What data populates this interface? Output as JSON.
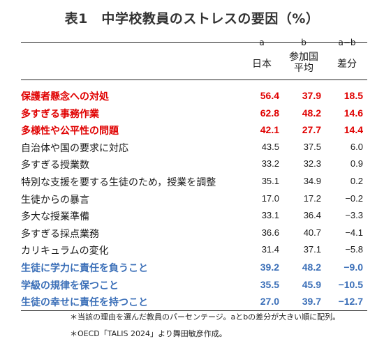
{
  "title": "表1　中学校教員のストレスの要因（%）",
  "columns": [
    {
      "letter": "a",
      "name": "日本"
    },
    {
      "letter": "b",
      "name_line1": "参加国",
      "name_line2": "平均"
    },
    {
      "letter": "a−b",
      "name": "差分"
    }
  ],
  "rows": [
    {
      "label": "保護者懸念への対処",
      "a": "56.4",
      "b": "37.9",
      "diff": "18.5",
      "style": "red"
    },
    {
      "label": "多すぎる事務作業",
      "a": "62.8",
      "b": "48.2",
      "diff": "14.6",
      "style": "red"
    },
    {
      "label": "多様性や公平性の問題",
      "a": "42.1",
      "b": "27.7",
      "diff": "14.4",
      "style": "red"
    },
    {
      "label": "自治体や国の要求に対応",
      "a": "43.5",
      "b": "37.5",
      "diff": "6.0",
      "style": "normal"
    },
    {
      "label": "多すぎる授業数",
      "a": "33.2",
      "b": "32.3",
      "diff": "0.9",
      "style": "normal"
    },
    {
      "label": "特別な支援を要する生徒のため，授業を調整",
      "a": "35.1",
      "b": "34.9",
      "diff": "0.2",
      "style": "normal"
    },
    {
      "label": "生徒からの暴言",
      "a": "17.0",
      "b": "17.2",
      "diff": "−0.2",
      "style": "normal"
    },
    {
      "label": "多大な授業準備",
      "a": "33.1",
      "b": "36.4",
      "diff": "−3.3",
      "style": "normal"
    },
    {
      "label": "多すぎる採点業務",
      "a": "36.6",
      "b": "40.7",
      "diff": "−4.1",
      "style": "normal"
    },
    {
      "label": "カリキュラムの変化",
      "a": "31.4",
      "b": "37.1",
      "diff": "−5.8",
      "style": "normal"
    },
    {
      "label": "生徒に学力に責任を負うこと",
      "a": "39.2",
      "b": "48.2",
      "diff": "−9.0",
      "style": "blue"
    },
    {
      "label": "学級の規律を保つこと",
      "a": "35.5",
      "b": "45.9",
      "diff": "−10.5",
      "style": "blue"
    },
    {
      "label": "生徒の幸せに責任を持つこと",
      "a": "27.0",
      "b": "39.7",
      "diff": "−12.7",
      "style": "blue"
    }
  ],
  "notes": [
    "＊当該の理由を選んだ教員のパーセンテージ。aとbの差分が大きい順に配列。",
    "＊OECD「TALIS 2024」より舞田敏彦作成。"
  ]
}
